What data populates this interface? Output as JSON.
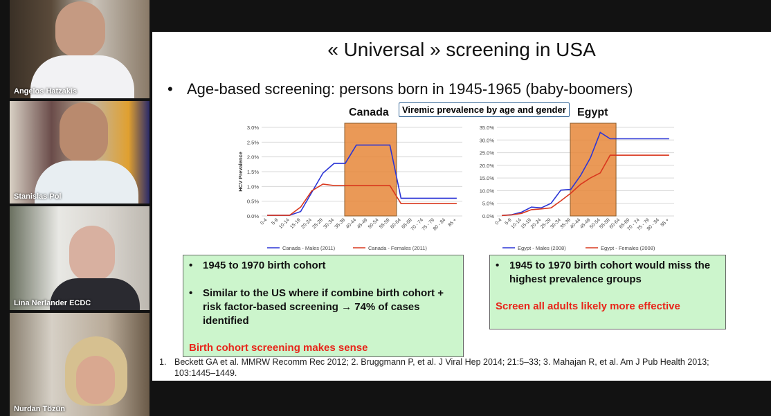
{
  "participants": [
    {
      "name": "Angelos Hatzakis"
    },
    {
      "name": "Stanislas Pol"
    },
    {
      "name": "Lina Nerlander ECDC"
    },
    {
      "name": "Nurdan Tözün"
    }
  ],
  "slide": {
    "title": "« Universal » screening in USA",
    "bullet": "Age-based screening: persons born in 1945-1965 (baby-boomers)",
    "canada_label": "Canada",
    "egypt_label": "Egypt",
    "viremic_label": "Viremic prevalence by age and gender",
    "left_box": {
      "items": [
        "1945 to 1970 birth cohort",
        "Similar to the US where if combine birth cohort + risk factor-based screening → 74% of cases identified"
      ],
      "conclusion": "Birth cohort screening makes sense"
    },
    "right_box": {
      "items": [
        "1945 to 1970 birth cohort would miss the highest prevalence groups"
      ],
      "conclusion": "Screen all adults likely more effective"
    },
    "refs": {
      "num": "1.",
      "line1": "Beckett GA et al. MMRW Recomm Rec 2012; 2. Bruggmann P, et al. J Viral Hep 2014; 21:5–33; 3. Mahajan R, et al. Am J Pub Health 2013;",
      "line2": "103:1445–1449."
    },
    "bullet_dot": "•",
    "box_dot": "•"
  },
  "colors": {
    "males": "#2b35d6",
    "females": "#d9381e",
    "highlight": "#e6873a"
  },
  "chart_data": [
    {
      "type": "line",
      "title": "",
      "xlabel": "",
      "ylabel": "HCV Prevalence",
      "ylim": [
        0,
        3.0
      ],
      "yticks": [
        "0.0%",
        "0.5%",
        "1.0%",
        "1.5%",
        "2.0%",
        "2.5%",
        "3.0%"
      ],
      "categories": [
        "0-4",
        "5-9",
        "10-14",
        "15-19",
        "20-24",
        "25-29",
        "30-34",
        "35-39",
        "40-44",
        "45-49",
        "50-54",
        "55-59",
        "60-64",
        "65-69",
        "70 - 74",
        "75 - 79",
        "80 - 84",
        "85 +"
      ],
      "highlight": {
        "from": "35-39",
        "to": "55-59"
      },
      "series": [
        {
          "name": "Canada - Males (2011)",
          "values": [
            0.02,
            0.02,
            0.02,
            0.15,
            0.8,
            1.45,
            1.78,
            1.78,
            2.4,
            2.4,
            2.4,
            2.4,
            0.6,
            0.6,
            0.6,
            0.6,
            0.6,
            0.6
          ]
        },
        {
          "name": "Canada - Females (2011)",
          "values": [
            0.02,
            0.02,
            0.02,
            0.3,
            0.85,
            1.08,
            1.03,
            1.03,
            1.03,
            1.03,
            1.03,
            1.03,
            0.42,
            0.42,
            0.42,
            0.42,
            0.42,
            0.42
          ]
        }
      ],
      "legend": "bottom"
    },
    {
      "type": "line",
      "title": "",
      "xlabel": "",
      "ylabel": "",
      "ylim": [
        0,
        35
      ],
      "yticks": [
        "0.0%",
        "5.0%",
        "10.0%",
        "15.0%",
        "20.0%",
        "25.0%",
        "30.0%",
        "35.0%"
      ],
      "categories": [
        "0-4",
        "5-9",
        "10-14",
        "15-19",
        "20-24",
        "25-29",
        "30-34",
        "35-39",
        "40-44",
        "45-49",
        "50-54",
        "55-59",
        "60-64",
        "65-69",
        "70 - 74",
        "75 - 79",
        "80 - 84",
        "85 +"
      ],
      "highlight": {
        "from": "35-39",
        "to": "55-59"
      },
      "series": [
        {
          "name": "Egypt - Males (2008)",
          "values": [
            0.2,
            0.5,
            1.5,
            3.5,
            3.2,
            5.0,
            10.2,
            10.5,
            16.0,
            23.0,
            33.0,
            30.5,
            30.5,
            30.5,
            30.5,
            30.5,
            30.5,
            30.5
          ]
        },
        {
          "name": "Egypt - Females (2008)",
          "values": [
            0.2,
            0.4,
            1.0,
            2.5,
            2.8,
            3.2,
            6.0,
            9.0,
            12.5,
            15.0,
            17.0,
            24.0,
            24.0,
            24.0,
            24.0,
            24.0,
            24.0,
            24.0
          ]
        }
      ],
      "legend": "bottom"
    }
  ]
}
